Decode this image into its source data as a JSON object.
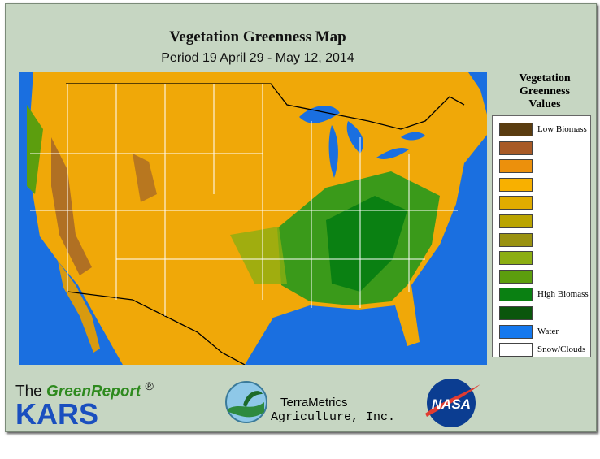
{
  "header": {
    "title": "Vegetation Greenness Map",
    "subtitle": "Period 19  April 29 - May 12, 2014"
  },
  "legend": {
    "title": "Vegetation Greenness Values",
    "items": [
      {
        "color": "#5a3c10",
        "label": "Low Biomass"
      },
      {
        "color": "#a85a26"
      },
      {
        "color": "#ec900c"
      },
      {
        "color": "#f8b000"
      },
      {
        "color": "#e0ac00"
      },
      {
        "color": "#baa400"
      },
      {
        "color": "#9a9210"
      },
      {
        "color": "#8cae12"
      },
      {
        "color": "#5c9e0e"
      },
      {
        "color": "#0a8012",
        "label": "High Biomass"
      },
      {
        "color": "#0a560c"
      },
      {
        "color": "#1478ee",
        "label": "Water"
      },
      {
        "color": "#ffffff",
        "label": "Snow/Clouds"
      }
    ]
  },
  "footer": {
    "the": "The",
    "brand": "GreenReport",
    "mark": "®",
    "kars": "KARS",
    "company": "TerraMetrics",
    "company_sub": "Agriculture, Inc.",
    "nasa": "NASA"
  }
}
